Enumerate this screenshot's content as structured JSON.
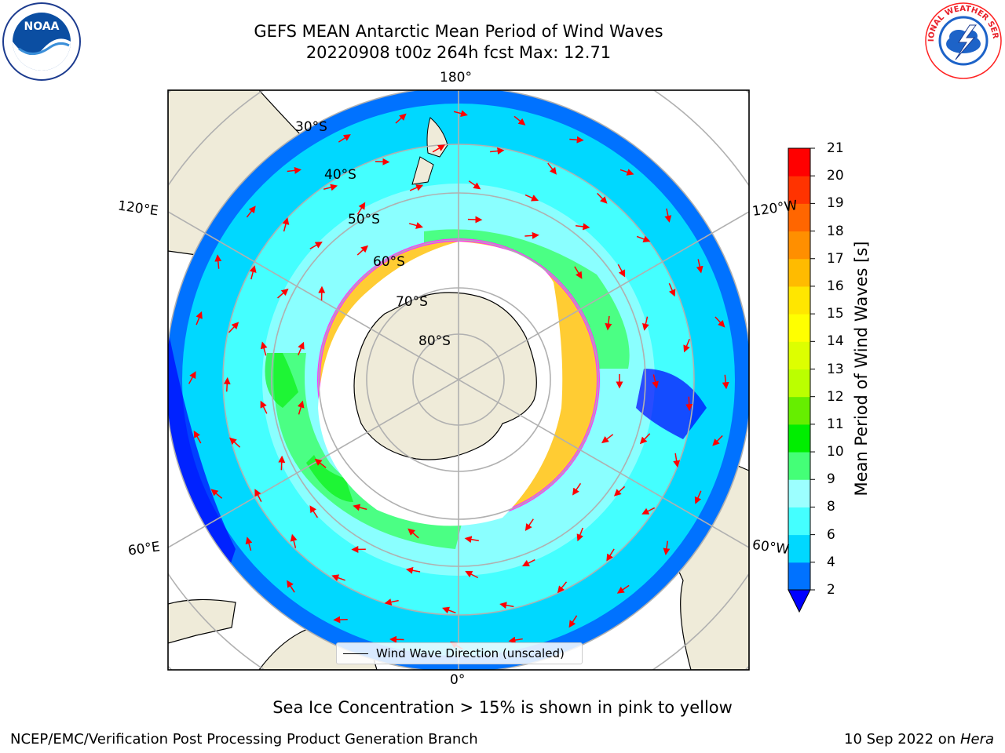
{
  "title": {
    "line1": "GEFS MEAN Antarctic Mean Period of Wind Waves",
    "line2": "20220908 t00z 264h fcst   Max: 12.71"
  },
  "logos": {
    "left": "NOAA",
    "right": "NATIONAL WEATHER SERVICE"
  },
  "map": {
    "projection": "south-polar-stereographic",
    "lon_labels": {
      "top": "180°",
      "bottom": "0°",
      "upper_left": "120°E",
      "upper_right": "120°W",
      "lower_left": "60°E",
      "lower_right": "60°W"
    },
    "lat_labels": [
      "30°S",
      "40°S",
      "50°S",
      "60°S",
      "70°S",
      "80°S"
    ],
    "legend": "Wind Wave Direction (unscaled)",
    "colors": {
      "land": "#efebd9",
      "sea_ice_low": "#ff33ff",
      "sea_ice_high": "#ffcc33",
      "arrows": "#ff0000"
    }
  },
  "colorbar": {
    "label": "Mean Period of Wind Waves [s]",
    "ticks": [
      "2",
      "4",
      "6",
      "8",
      "9",
      "10",
      "11",
      "12",
      "13",
      "14",
      "15",
      "16",
      "17",
      "18",
      "19",
      "20",
      "21"
    ],
    "colors": [
      "#0072ff",
      "#00d8ff",
      "#44ffff",
      "#9cffff",
      "#44ff77",
      "#00ee00",
      "#66ee00",
      "#bbff00",
      "#ddff00",
      "#ffff00",
      "#ffe600",
      "#ffbb00",
      "#ff8f00",
      "#ff6600",
      "#ff3300",
      "#ff0000"
    ],
    "under_color": "#0000ff"
  },
  "caption": "Sea Ice Concentration > 15% is shown in pink to yellow",
  "footer": {
    "left": "NCEP/EMC/Verification Post Processing Product Generation Branch",
    "right_date": "10 Sep 2022 on ",
    "right_host": "Hera"
  }
}
